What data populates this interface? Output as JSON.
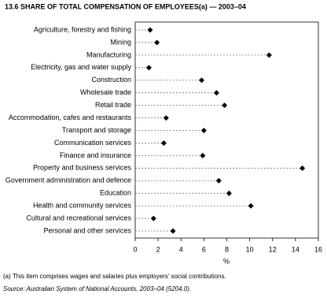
{
  "chart_data": {
    "type": "dot",
    "title": "13.6  SHARE OF TOTAL COMPENSATION OF EMPLOYEES(a) — 2003–04",
    "categories": [
      "Agriculture, forestry and fishing",
      "Mining",
      "Manufacturing",
      "Electricity, gas and water supply",
      "Construction",
      "Wholesale trade",
      "Retail trade",
      "Accommodation, cafes and restaurants",
      "Transport and storage",
      "Communication services",
      "Finance and insurance",
      "Property and business services",
      "Government administration and defence",
      "Education",
      "Health and community services",
      "Cultural and recreational services",
      "Personal and other services"
    ],
    "values": [
      1.3,
      1.9,
      11.7,
      1.2,
      5.8,
      7.1,
      7.8,
      2.7,
      6.0,
      2.5,
      5.9,
      14.6,
      7.3,
      8.2,
      10.1,
      1.6,
      3.3
    ],
    "color": "#000000",
    "xlabel": "%",
    "xlim": [
      0,
      16
    ],
    "xticks": [
      0,
      2,
      4,
      6,
      8,
      10,
      12,
      14,
      16
    ],
    "footnote": "(a) This item comprises wages and salaries plus employers' social contributions.",
    "source": "Source: Australian System of National Accounts, 2003–04 (5204.0)."
  }
}
